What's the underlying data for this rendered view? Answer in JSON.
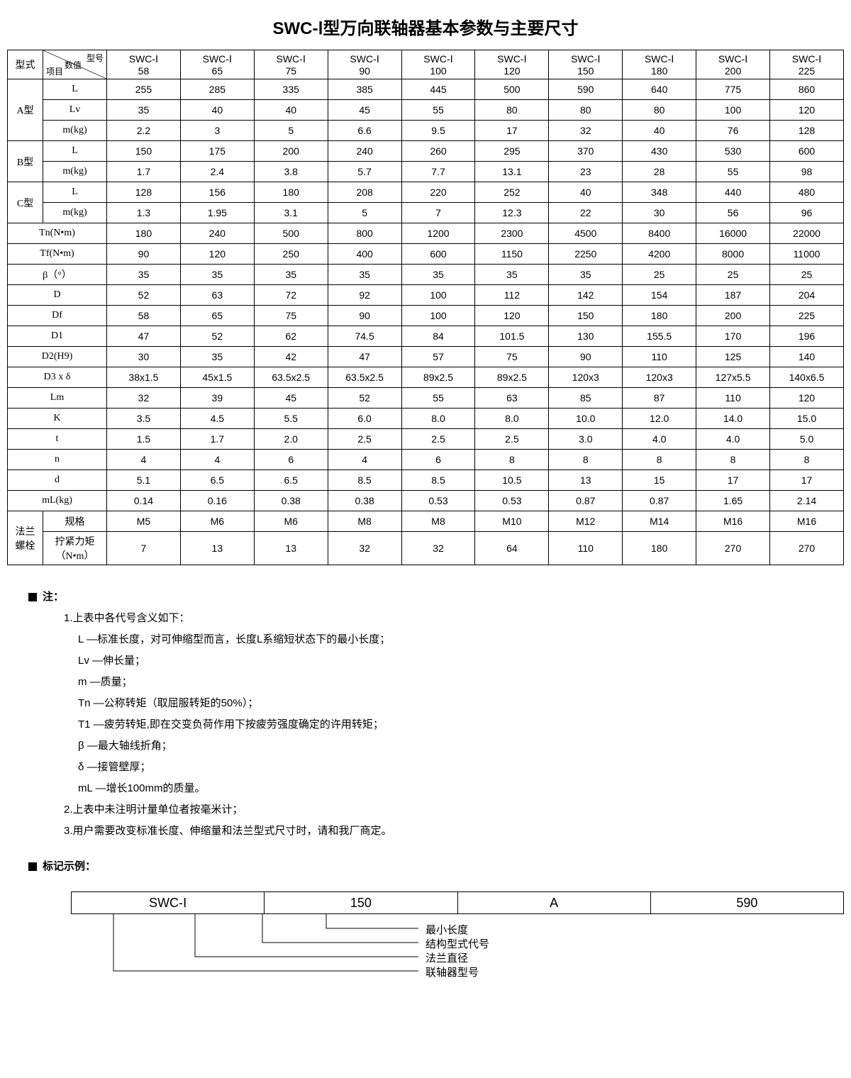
{
  "title": "SWC-Ⅰ型万向联轴器基本参数与主要尺寸",
  "corner": {
    "top_right": "型号",
    "mid": "数值",
    "bottom_left": "项目"
  },
  "col_headers": [
    "SWC-Ⅰ\n58",
    "SWC-Ⅰ\n65",
    "SWC-Ⅰ\n75",
    "SWC-Ⅰ\n90",
    "SWC-Ⅰ\n100",
    "SWC-Ⅰ\n120",
    "SWC-Ⅰ\n150",
    "SWC-Ⅰ\n180",
    "SWC-Ⅰ\n200",
    "SWC-Ⅰ\n225"
  ],
  "left_top": "型式",
  "groups": [
    {
      "name": "A型",
      "rows": [
        {
          "label": "L",
          "vals": [
            "255",
            "285",
            "335",
            "385",
            "445",
            "500",
            "590",
            "640",
            "775",
            "860"
          ]
        },
        {
          "label": "Lv",
          "vals": [
            "35",
            "40",
            "40",
            "45",
            "55",
            "80",
            "80",
            "80",
            "100",
            "120"
          ]
        },
        {
          "label": "m(kg)",
          "vals": [
            "2.2",
            "3",
            "5",
            "6.6",
            "9.5",
            "17",
            "32",
            "40",
            "76",
            "128"
          ]
        }
      ]
    },
    {
      "name": "B型",
      "rows": [
        {
          "label": "L",
          "vals": [
            "150",
            "175",
            "200",
            "240",
            "260",
            "295",
            "370",
            "430",
            "530",
            "600"
          ]
        },
        {
          "label": "m(kg)",
          "vals": [
            "1.7",
            "2.4",
            "3.8",
            "5.7",
            "7.7",
            "13.1",
            "23",
            "28",
            "55",
            "98"
          ]
        }
      ]
    },
    {
      "name": "C型",
      "rows": [
        {
          "label": "L",
          "vals": [
            "128",
            "156",
            "180",
            "208",
            "220",
            "252",
            "40",
            "348",
            "440",
            "480"
          ]
        },
        {
          "label": "m(kg)",
          "vals": [
            "1.3",
            "1.95",
            "3.1",
            "5",
            "7",
            "12.3",
            "22",
            "30",
            "56",
            "96"
          ]
        }
      ]
    }
  ],
  "flat_rows": [
    {
      "label": "Tn(N•m)",
      "vals": [
        "180",
        "240",
        "500",
        "800",
        "1200",
        "2300",
        "4500",
        "8400",
        "16000",
        "22000"
      ]
    },
    {
      "label": "Tf(N•m)",
      "vals": [
        "90",
        "120",
        "250",
        "400",
        "600",
        "1150",
        "2250",
        "4200",
        "8000",
        "11000"
      ]
    },
    {
      "label": "β（°）",
      "vals": [
        "35",
        "35",
        "35",
        "35",
        "35",
        "35",
        "35",
        "25",
        "25",
        "25"
      ]
    },
    {
      "label": "D",
      "vals": [
        "52",
        "63",
        "72",
        "92",
        "100",
        "112",
        "142",
        "154",
        "187",
        "204"
      ]
    },
    {
      "label": "Df",
      "vals": [
        "58",
        "65",
        "75",
        "90",
        "100",
        "120",
        "150",
        "180",
        "200",
        "225"
      ]
    },
    {
      "label": "D1",
      "vals": [
        "47",
        "52",
        "62",
        "74.5",
        "84",
        "101.5",
        "130",
        "155.5",
        "170",
        "196"
      ]
    },
    {
      "label": "D2(H9)",
      "vals": [
        "30",
        "35",
        "42",
        "47",
        "57",
        "75",
        "90",
        "110",
        "125",
        "140"
      ]
    },
    {
      "label": "D3 x δ",
      "vals": [
        "38x1.5",
        "45x1.5",
        "63.5x2.5",
        "63.5x2.5",
        "89x2.5",
        "89x2.5",
        "120x3",
        "120x3",
        "127x5.5",
        "140x6.5"
      ]
    },
    {
      "label": "Lm",
      "vals": [
        "32",
        "39",
        "45",
        "52",
        "55",
        "63",
        "85",
        "87",
        "110",
        "120"
      ]
    },
    {
      "label": "K",
      "vals": [
        "3.5",
        "4.5",
        "5.5",
        "6.0",
        "8.0",
        "8.0",
        "10.0",
        "12.0",
        "14.0",
        "15.0"
      ]
    },
    {
      "label": "t",
      "vals": [
        "1.5",
        "1.7",
        "2.0",
        "2.5",
        "2.5",
        "2.5",
        "3.0",
        "4.0",
        "4.0",
        "5.0"
      ]
    },
    {
      "label": "n",
      "vals": [
        "4",
        "4",
        "6",
        "4",
        "6",
        "8",
        "8",
        "8",
        "8",
        "8"
      ]
    },
    {
      "label": "d",
      "vals": [
        "5.1",
        "6.5",
        "6.5",
        "8.5",
        "8.5",
        "10.5",
        "13",
        "15",
        "17",
        "17"
      ]
    },
    {
      "label": "mL(kg)",
      "vals": [
        "0.14",
        "0.16",
        "0.38",
        "0.38",
        "0.53",
        "0.53",
        "0.87",
        "0.87",
        "1.65",
        "2.14"
      ]
    }
  ],
  "flange": {
    "name": "法兰\n螺栓",
    "rows": [
      {
        "label": "规格",
        "vals": [
          "M5",
          "M6",
          "M6",
          "M8",
          "M8",
          "M10",
          "M12",
          "M14",
          "M16",
          "M16"
        ]
      },
      {
        "label": "拧紧力矩\n（N•m）",
        "vals": [
          "7",
          "13",
          "13",
          "32",
          "32",
          "64",
          "110",
          "180",
          "270",
          "270"
        ]
      }
    ]
  },
  "notes": {
    "header": "注：",
    "n1_head": "1.上表中各代号含义如下：",
    "n1": [
      "L —标准长度，对可伸缩型而言，长度L系缩短状态下的最小长度；",
      "Lv —伸长量；",
      "m —质量；",
      "Tn —公称转矩（取屈服转矩的50%）；",
      "T1 —疲劳转矩,即在交变负荷作用下按疲劳强度确定的许用转矩；",
      "β —最大轴线折角；",
      "δ —接管壁厚；",
      "mL —增长100mm的质量。"
    ],
    "n2": "2.上表中未注明计量单位者按毫米计；",
    "n3": "3.用户需要改变标准长度、伸缩量和法兰型式尺寸时，请和我厂商定。"
  },
  "example": {
    "header": "标记示例：",
    "boxes": [
      "SWC-Ⅰ",
      "150",
      "A",
      "590"
    ],
    "labels": [
      "最小长度",
      "结构型式代号",
      "法兰直径",
      "联轴器型号"
    ]
  }
}
